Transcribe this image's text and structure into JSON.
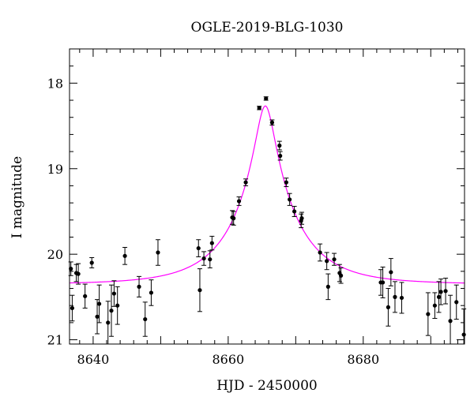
{
  "chart_data": {
    "type": "scatter",
    "title": "OGLE-2019-BLG-1030",
    "xlabel": "HJD - 2450000",
    "ylabel": "I magnitude",
    "xlim": [
      8636.5,
      8695.0
    ],
    "ylim": [
      21.05,
      17.6
    ],
    "y_inverted": true,
    "grid": false,
    "legend": "none",
    "x_ticks": [
      8640,
      8660,
      8680
    ],
    "y_ticks": [
      18,
      19,
      20,
      21
    ],
    "colors": {
      "points": "#000000",
      "model": "#ff00ff"
    },
    "model": {
      "name": "",
      "type": "point-lens",
      "baseline_mag": 20.35,
      "t0": 8665.5,
      "tE": 9.0,
      "u0": 0.148
    },
    "series": [
      {
        "name": "",
        "points": [
          [
            8636.7,
            20.17,
            0.08
          ],
          [
            8636.9,
            20.63,
            0.15
          ],
          [
            8637.5,
            20.22,
            0.1
          ],
          [
            8637.8,
            20.23,
            0.12
          ],
          [
            8638.8,
            20.49,
            0.14
          ],
          [
            8639.8,
            20.1,
            0.06
          ],
          [
            8640.6,
            20.73,
            0.2
          ],
          [
            8640.9,
            20.58,
            0.22
          ],
          [
            8642.2,
            20.8,
            0.25
          ],
          [
            8642.7,
            20.66,
            0.3
          ],
          [
            8643.1,
            20.46,
            0.15
          ],
          [
            8643.6,
            20.6,
            0.22
          ],
          [
            8644.7,
            20.02,
            0.1
          ],
          [
            8646.8,
            20.38,
            0.12
          ],
          [
            8647.7,
            20.76,
            0.2
          ],
          [
            8648.6,
            20.45,
            0.15
          ],
          [
            8649.6,
            19.98,
            0.15
          ],
          [
            8655.6,
            19.93,
            0.1
          ],
          [
            8655.8,
            20.42,
            0.25
          ],
          [
            8656.4,
            20.05,
            0.08
          ],
          [
            8657.3,
            20.06,
            0.1
          ],
          [
            8657.6,
            19.87,
            0.08
          ],
          [
            8660.6,
            19.57,
            0.08
          ],
          [
            8660.8,
            19.58,
            0.08
          ],
          [
            8661.6,
            19.38,
            0.05
          ],
          [
            8662.6,
            19.16,
            0.04
          ],
          [
            8664.6,
            18.29,
            0.02
          ],
          [
            8665.6,
            18.18,
            0.02
          ],
          [
            8666.5,
            18.46,
            0.03
          ],
          [
            8667.6,
            18.73,
            0.05
          ],
          [
            8667.7,
            18.85,
            0.05
          ],
          [
            8668.6,
            19.16,
            0.05
          ],
          [
            8669.1,
            19.36,
            0.07
          ],
          [
            8669.8,
            19.5,
            0.06
          ],
          [
            8670.8,
            19.61,
            0.08
          ],
          [
            8670.9,
            19.58,
            0.07
          ],
          [
            8673.6,
            19.98,
            0.1
          ],
          [
            8674.6,
            20.08,
            0.1
          ],
          [
            8674.8,
            20.38,
            0.15
          ],
          [
            8675.7,
            20.06,
            0.07
          ],
          [
            8676.5,
            20.22,
            0.1
          ],
          [
            8676.7,
            20.25,
            0.09
          ],
          [
            8682.6,
            20.33,
            0.15
          ],
          [
            8682.9,
            20.33,
            0.18
          ],
          [
            8683.7,
            20.62,
            0.22
          ],
          [
            8684.1,
            20.21,
            0.16
          ],
          [
            8684.7,
            20.5,
            0.18
          ],
          [
            8685.7,
            20.51,
            0.18
          ],
          [
            8689.6,
            20.7,
            0.25
          ],
          [
            8690.6,
            20.6,
            0.15
          ],
          [
            8691.2,
            20.5,
            0.18
          ],
          [
            8691.5,
            20.44,
            0.15
          ],
          [
            8692.2,
            20.43,
            0.15
          ],
          [
            8692.9,
            20.78,
            0.3
          ],
          [
            8693.8,
            20.56,
            0.2
          ],
          [
            8694.9,
            20.94,
            0.3
          ]
        ]
      }
    ]
  }
}
